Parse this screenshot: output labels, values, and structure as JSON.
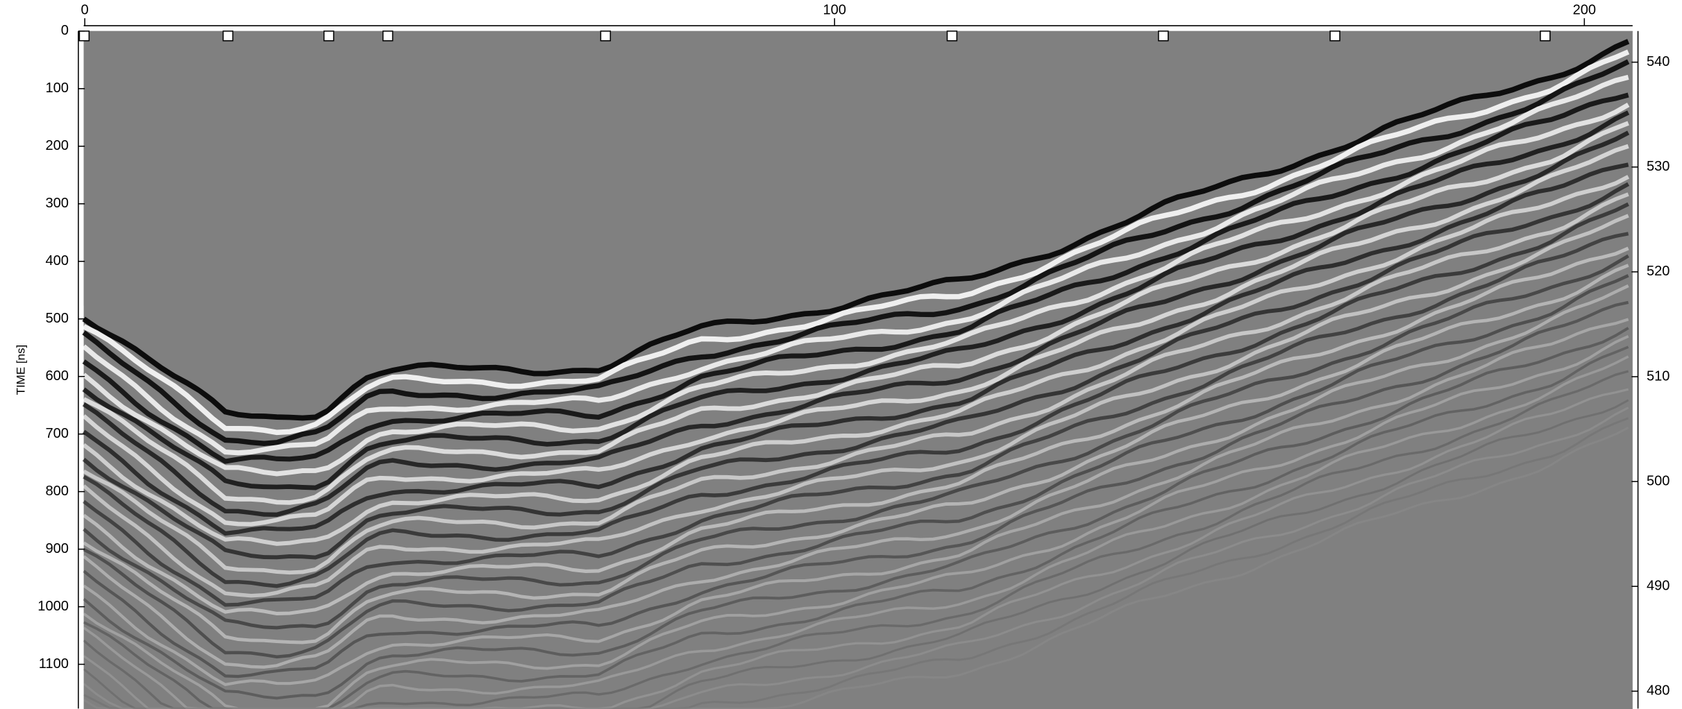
{
  "top_axis": {
    "ticks": [
      0,
      100,
      200
    ]
  },
  "left_axis": {
    "label": "TIME [ns]",
    "ticks": [
      0,
      100,
      200,
      300,
      400,
      500,
      600,
      700,
      800,
      900,
      1000,
      1100
    ]
  },
  "right_axis": {
    "ticks": [
      540,
      530,
      520,
      510,
      500,
      490,
      480
    ]
  }
}
